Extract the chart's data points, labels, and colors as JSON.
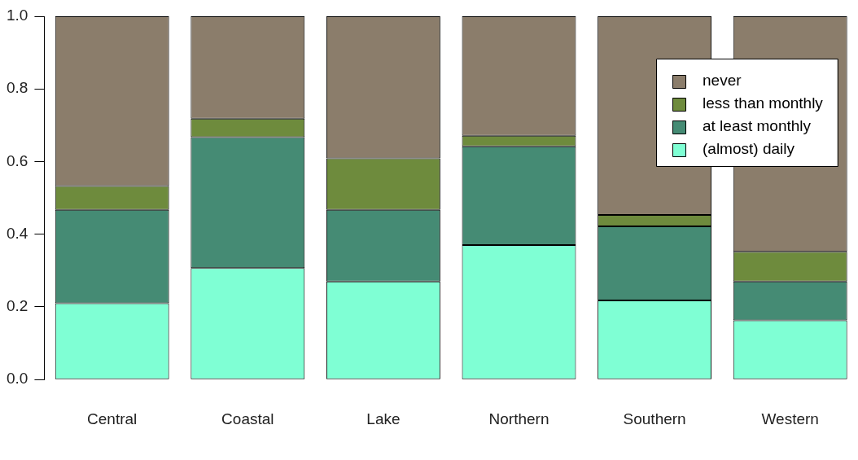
{
  "chart_data": {
    "type": "bar",
    "stacked": true,
    "categories": [
      "Central",
      "Coastal",
      "Lake",
      "Northern",
      "Southern",
      "Western"
    ],
    "series": [
      {
        "name": "(almost) daily",
        "color": "#7fffd4",
        "values": [
          0.21,
          0.307,
          0.27,
          0.37,
          0.218,
          0.163
        ]
      },
      {
        "name": "at least monthly",
        "color": "#458b74",
        "values": [
          0.257,
          0.36,
          0.197,
          0.272,
          0.204,
          0.107
        ]
      },
      {
        "name": "less than monthly",
        "color": "#6e8b3d",
        "values": [
          0.066,
          0.051,
          0.142,
          0.029,
          0.031,
          0.082
        ]
      },
      {
        "name": "never",
        "color": "#8b7d6b",
        "values": [
          0.467,
          0.282,
          0.391,
          0.329,
          0.547,
          0.648
        ]
      }
    ],
    "ylim": [
      0,
      1
    ],
    "yticks": [
      {
        "value": 0,
        "label": "0.0"
      },
      {
        "value": 0.2,
        "label": "0.2"
      },
      {
        "value": 0.4,
        "label": "0.4"
      },
      {
        "value": 0.6,
        "label": "0.6"
      },
      {
        "value": 0.8,
        "label": "0.8"
      },
      {
        "value": 1,
        "label": "1.0"
      }
    ],
    "grid": false,
    "legend": "top right"
  }
}
